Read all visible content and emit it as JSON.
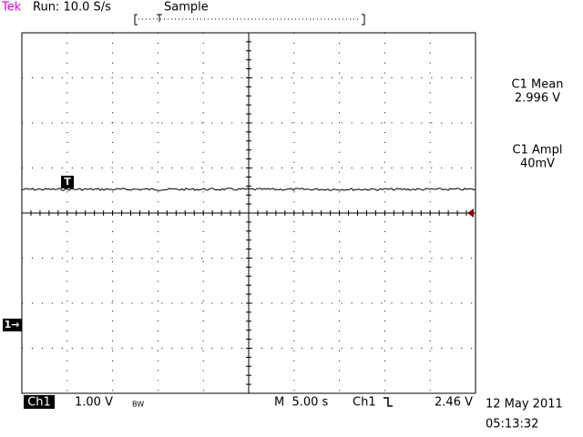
{
  "header": {
    "brand": "Tek",
    "run": "Run: 10.0 S/s",
    "mode": "Sample"
  },
  "measurements": [
    {
      "label": "C1 Mean",
      "value": "2.996 V"
    },
    {
      "label": "C1 Ampl",
      "value": "40mV"
    }
  ],
  "status": {
    "channel": "Ch1",
    "scale": "1.00 V",
    "bw": "BW",
    "timebase": "M  5.00 s",
    "trigger_source": "Ch1",
    "trigger_level": "2.46 V",
    "date": "12 May 2011",
    "time": "05:13:32"
  },
  "markers": {
    "trigger": "T",
    "channel": "1→"
  }
}
